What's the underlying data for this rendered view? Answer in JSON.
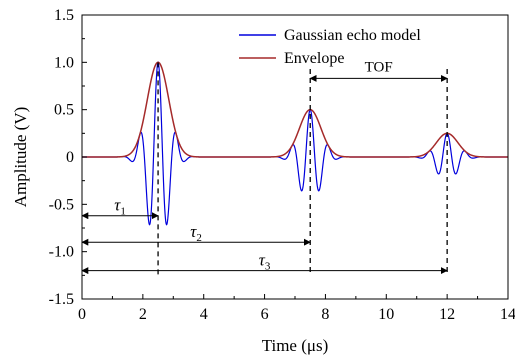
{
  "chart_data": {
    "type": "line",
    "title": "",
    "xlabel": "Time (μs)",
    "ylabel": "Amplitude (V)",
    "xlim": [
      0,
      14
    ],
    "ylim": [
      -1.5,
      1.5
    ],
    "x_ticks": [
      0,
      2,
      4,
      6,
      8,
      10,
      12,
      14
    ],
    "x_tick_labels": [
      "0",
      "2",
      "4",
      "6",
      "8",
      "10",
      "12",
      "14"
    ],
    "y_ticks": [
      -1.5,
      -1.0,
      -0.5,
      0,
      0.5,
      1.0,
      1.5
    ],
    "y_tick_labels": [
      "-1.5",
      "-1.0",
      "-0.5",
      "0",
      "0.5",
      "1.0",
      "1.5"
    ],
    "grid": false,
    "legend_position": "top-right",
    "series": [
      {
        "name": "Gaussian echo model",
        "color": "#0000dd",
        "model": "gaussian-echo",
        "echoes": [
          {
            "center": 2.5,
            "amplitude": 1.0,
            "width": 0.5,
            "period": 0.6
          },
          {
            "center": 7.5,
            "amplitude": 0.5,
            "width": 0.5,
            "period": 0.6
          },
          {
            "center": 12.0,
            "amplitude": 0.25,
            "width": 0.5,
            "period": 0.6
          }
        ]
      },
      {
        "name": "Envelope",
        "color": "#a52a2a",
        "model": "gaussian-envelope",
        "echoes": [
          {
            "center": 2.5,
            "amplitude": 1.0,
            "width": 0.5
          },
          {
            "center": 7.5,
            "amplitude": 0.5,
            "width": 0.5
          },
          {
            "center": 12.0,
            "amplitude": 0.25,
            "width": 0.5
          }
        ]
      }
    ],
    "annotations": {
      "tof_label": "TOF",
      "tof_span": [
        7.5,
        12.0
      ],
      "tof_y": 0.83,
      "markers": [
        2.5,
        7.5,
        12.0
      ],
      "taus": [
        {
          "symbol": "τ",
          "sub": "1",
          "from": 0,
          "to": 2.5,
          "y": -0.62
        },
        {
          "symbol": "τ",
          "sub": "2",
          "from": 0,
          "to": 7.5,
          "y": -0.9
        },
        {
          "symbol": "τ",
          "sub": "3",
          "from": 0,
          "to": 12.0,
          "y": -1.2
        }
      ]
    }
  }
}
